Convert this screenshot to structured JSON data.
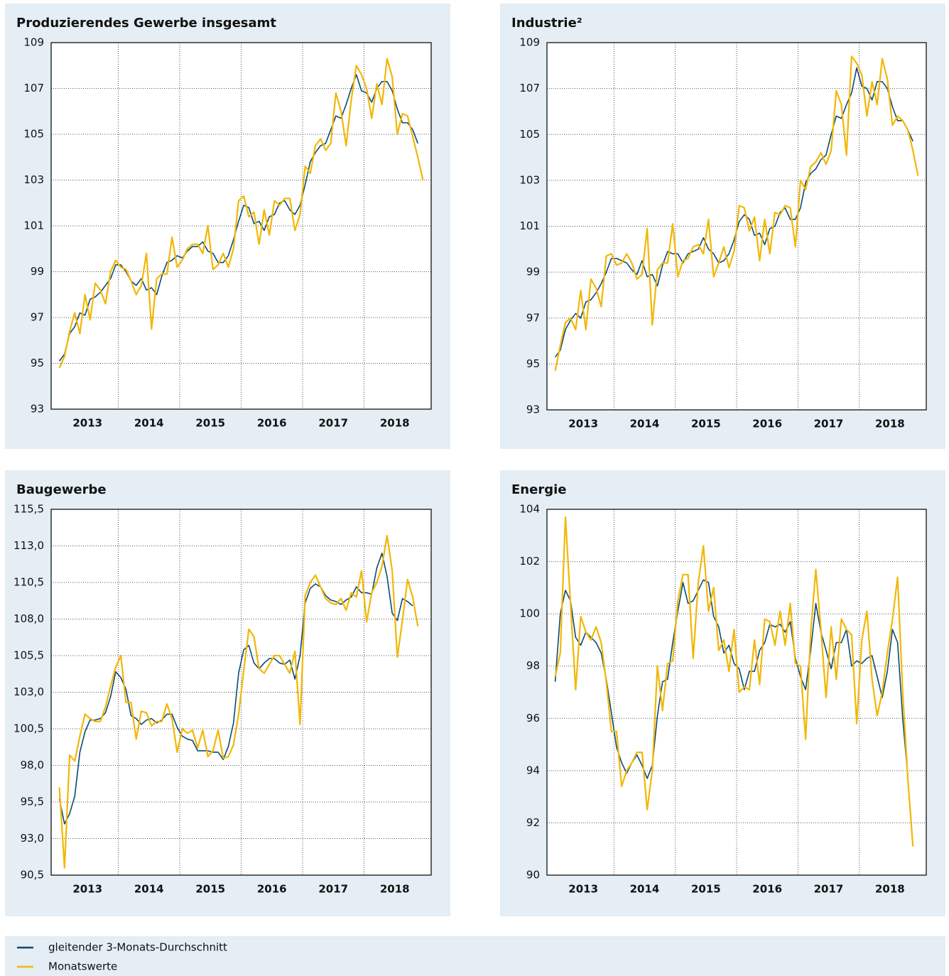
{
  "chart_data": [
    {
      "type": "line",
      "title": "Produzierendes Gewerbe insgesamt",
      "categories": [
        null,
        null,
        null,
        null,
        null,
        null,
        "2013",
        null,
        null,
        null,
        null,
        null,
        null,
        null,
        null,
        null,
        null,
        null,
        "2014",
        null,
        null,
        null,
        null,
        null,
        null,
        null,
        null,
        null,
        null,
        null,
        "2015",
        null,
        null,
        null,
        null,
        null,
        null,
        null,
        null,
        null,
        null,
        null,
        "2016",
        null,
        null,
        null,
        null,
        null,
        null,
        null,
        null,
        null,
        null,
        null,
        "2017",
        null,
        null,
        null,
        null,
        null,
        null,
        null,
        null,
        null,
        null,
        null,
        "2018",
        null,
        null,
        null,
        null,
        null
      ],
      "series": [
        {
          "name": "gleitender 3-Monats-Durchschnitt",
          "color": "#0b4a78",
          "values": [
            95.1,
            95.4,
            96.3,
            96.6,
            97.2,
            97.1,
            97.8,
            97.9,
            98.1,
            98.4,
            98.7,
            99.3,
            99.3,
            99.0,
            98.6,
            98.4,
            98.7,
            98.2,
            98.3,
            98.0,
            98.8,
            99.4,
            99.5,
            99.7,
            99.6,
            99.9,
            100.1,
            100.1,
            100.3,
            99.9,
            99.8,
            99.4,
            99.4,
            99.7,
            100.4,
            101.2,
            101.9,
            101.8,
            101.1,
            101.2,
            100.8,
            101.4,
            101.5,
            102.0,
            102.1,
            101.7,
            101.5,
            101.9,
            102.8,
            103.8,
            104.2,
            104.5,
            104.6,
            105.2,
            105.8,
            105.7,
            106.3,
            107.0,
            107.6,
            106.9,
            106.8,
            106.4,
            107.0,
            107.3,
            107.3,
            106.9,
            106.1,
            105.5,
            105.5,
            105.2,
            104.6,
            null
          ]
        },
        {
          "name": "Monatswerte",
          "color": "#f2b705",
          "values": [
            94.8,
            95.3,
            96.4,
            97.2,
            96.3,
            98.0,
            96.9,
            98.5,
            98.2,
            97.6,
            99.0,
            99.5,
            99.2,
            99.1,
            98.6,
            98.0,
            98.4,
            99.8,
            96.5,
            98.7,
            98.9,
            98.9,
            100.5,
            99.2,
            99.5,
            100.0,
            100.2,
            100.2,
            99.8,
            101.0,
            99.1,
            99.3,
            99.8,
            99.2,
            100.0,
            102.1,
            102.3,
            101.4,
            101.6,
            100.2,
            101.7,
            100.6,
            102.1,
            101.9,
            102.2,
            102.2,
            100.8,
            101.5,
            103.6,
            103.3,
            104.5,
            104.8,
            104.3,
            104.6,
            106.8,
            106.0,
            104.5,
            106.5,
            108.0,
            107.6,
            107.0,
            105.7,
            107.2,
            106.3,
            108.3,
            107.5,
            105.0,
            105.9,
            105.8,
            104.9,
            104.0,
            103.0
          ]
        }
      ],
      "ylim": [
        93,
        109
      ],
      "yticks": [
        93,
        95,
        97,
        99,
        101,
        103,
        105,
        107,
        109
      ],
      "grid": true
    },
    {
      "type": "line",
      "title": "Industrie²",
      "categories": [
        null,
        null,
        null,
        null,
        null,
        null,
        "2013",
        null,
        null,
        null,
        null,
        null,
        null,
        null,
        null,
        null,
        null,
        null,
        "2014",
        null,
        null,
        null,
        null,
        null,
        null,
        null,
        null,
        null,
        null,
        null,
        "2015",
        null,
        null,
        null,
        null,
        null,
        null,
        null,
        null,
        null,
        null,
        null,
        "2016",
        null,
        null,
        null,
        null,
        null,
        null,
        null,
        null,
        null,
        null,
        null,
        "2017",
        null,
        null,
        null,
        null,
        null,
        null,
        null,
        null,
        null,
        null,
        null,
        "2018",
        null,
        null,
        null,
        null,
        null
      ],
      "series": [
        {
          "color": "#0b4a78",
          "values": [
            95.3,
            95.6,
            96.5,
            96.9,
            97.2,
            97.0,
            97.7,
            97.8,
            98.1,
            98.5,
            99.0,
            99.6,
            99.6,
            99.5,
            99.4,
            99.1,
            98.9,
            99.5,
            98.8,
            98.9,
            98.4,
            99.3,
            99.9,
            99.8,
            99.8,
            99.4,
            99.8,
            99.9,
            100.0,
            100.5,
            100.0,
            99.8,
            99.4,
            99.5,
            99.8,
            100.4,
            101.2,
            101.5,
            101.3,
            100.6,
            100.7,
            100.2,
            100.9,
            101.0,
            101.6,
            101.8,
            101.3,
            101.3,
            101.8,
            102.9,
            103.3,
            103.5,
            103.9,
            104.1,
            105.0,
            105.8,
            105.7,
            106.3,
            106.8,
            107.9,
            107.1,
            107.0,
            106.5,
            107.3,
            107.3,
            107.0,
            106.2,
            105.6,
            105.6,
            105.2,
            104.7,
            null
          ]
        },
        {
          "color": "#f2b705",
          "values": [
            94.7,
            95.8,
            96.8,
            97.0,
            96.5,
            98.2,
            96.5,
            98.7,
            98.3,
            97.5,
            99.7,
            99.8,
            99.3,
            99.4,
            99.8,
            99.4,
            98.7,
            98.9,
            100.9,
            96.7,
            99.1,
            99.4,
            99.4,
            101.1,
            98.8,
            99.5,
            99.6,
            100.1,
            100.2,
            99.8,
            101.3,
            98.8,
            99.4,
            100.1,
            99.2,
            99.9,
            101.9,
            101.8,
            100.8,
            101.4,
            99.5,
            101.3,
            99.8,
            101.6,
            101.5,
            101.9,
            101.8,
            100.1,
            103.0,
            102.6,
            103.6,
            103.8,
            104.2,
            103.7,
            104.3,
            106.9,
            106.3,
            104.1,
            108.4,
            108.1,
            107.6,
            105.8,
            107.3,
            106.3,
            108.3,
            107.4,
            105.4,
            105.8,
            105.6,
            105.2,
            104.3,
            103.2
          ]
        }
      ],
      "ylim": [
        93,
        109
      ],
      "yticks": [
        93,
        95,
        97,
        99,
        101,
        103,
        105,
        107,
        109
      ],
      "grid": true
    },
    {
      "type": "line",
      "title": "Baugewerbe",
      "categories": [
        null,
        null,
        null,
        null,
        null,
        null,
        "2013",
        null,
        null,
        null,
        null,
        null,
        null,
        null,
        null,
        null,
        null,
        null,
        "2014",
        null,
        null,
        null,
        null,
        null,
        null,
        null,
        null,
        null,
        null,
        null,
        "2015",
        null,
        null,
        null,
        null,
        null,
        null,
        null,
        null,
        null,
        null,
        null,
        "2016",
        null,
        null,
        null,
        null,
        null,
        null,
        null,
        null,
        null,
        null,
        null,
        "2017",
        null,
        null,
        null,
        null,
        null,
        null,
        null,
        null,
        null,
        null,
        null,
        "2018",
        null,
        null,
        null,
        null,
        null
      ],
      "series": [
        {
          "color": "#0b4a78",
          "values": [
            95.7,
            94.0,
            94.7,
            95.9,
            98.9,
            100.3,
            101.1,
            101.1,
            101.2,
            101.6,
            102.7,
            104.4,
            104.0,
            103.2,
            101.4,
            101.2,
            100.8,
            101.1,
            101.2,
            100.9,
            101.1,
            101.5,
            101.5,
            100.6,
            100.0,
            99.8,
            99.7,
            99.0,
            99.0,
            99.0,
            98.9,
            98.9,
            98.4,
            99.3,
            100.9,
            104.3,
            105.9,
            106.2,
            105.0,
            104.6,
            105.0,
            105.3,
            105.3,
            105.0,
            104.9,
            105.2,
            103.9,
            105.5,
            109.1,
            110.1,
            110.4,
            110.2,
            109.6,
            109.3,
            109.2,
            109.0,
            109.3,
            109.5,
            110.2,
            109.8,
            109.8,
            109.7,
            111.5,
            112.5,
            110.9,
            108.4,
            107.9,
            109.4,
            109.2,
            108.9,
            null,
            null
          ]
        },
        {
          "color": "#f2b705",
          "values": [
            96.5,
            91.0,
            98.7,
            98.3,
            100.0,
            101.5,
            101.2,
            101.0,
            101.0,
            102.0,
            103.4,
            104.7,
            105.5,
            102.3,
            102.3,
            99.8,
            101.7,
            101.6,
            100.7,
            101.0,
            101.0,
            102.2,
            101.2,
            98.9,
            100.5,
            100.2,
            100.4,
            99.2,
            100.4,
            98.6,
            99.0,
            100.4,
            98.5,
            98.6,
            99.4,
            101.5,
            104.5,
            107.3,
            106.8,
            104.6,
            104.3,
            104.9,
            105.5,
            105.5,
            104.9,
            104.3,
            105.8,
            100.8,
            109.6,
            110.5,
            111.0,
            110.2,
            109.4,
            109.1,
            109.0,
            109.4,
            108.6,
            109.8,
            109.5,
            111.3,
            107.8,
            109.8,
            110.5,
            111.6,
            113.7,
            111.3,
            105.4,
            107.9,
            110.7,
            109.5,
            107.5,
            null
          ]
        }
      ],
      "ylim": [
        90.5,
        115.5
      ],
      "yticks": [
        {
          "value": 90.5,
          "label": "90,5"
        },
        {
          "value": 93,
          "label": "93,0"
        },
        {
          "value": 95.5,
          "label": "95,5"
        },
        {
          "value": 98,
          "label": "98,0"
        },
        {
          "value": 100.5,
          "label": "100,5"
        },
        {
          "value": 103,
          "label": "103,0"
        },
        {
          "value": 105.5,
          "label": "105,5"
        },
        {
          "value": 108,
          "label": "108,0"
        },
        {
          "value": 110.5,
          "label": "110,5"
        },
        {
          "value": 113,
          "label": "113,0"
        },
        {
          "value": 115.5,
          "label": "115,5"
        }
      ],
      "grid": true
    },
    {
      "type": "line",
      "title": "Energie",
      "categories": [
        null,
        null,
        null,
        null,
        null,
        null,
        "2013",
        null,
        null,
        null,
        null,
        null,
        null,
        null,
        null,
        null,
        null,
        null,
        "2014",
        null,
        null,
        null,
        null,
        null,
        null,
        null,
        null,
        null,
        null,
        null,
        "2015",
        null,
        null,
        null,
        null,
        null,
        null,
        null,
        null,
        null,
        null,
        null,
        "2016",
        null,
        null,
        null,
        null,
        null,
        null,
        null,
        null,
        null,
        null,
        null,
        "2017",
        null,
        null,
        null,
        null,
        null,
        null,
        null,
        null,
        null,
        null,
        null,
        "2018",
        null,
        null,
        null,
        null,
        null
      ],
      "series": [
        {
          "color": "#0b4a78",
          "values": [
            97.4,
            100.0,
            100.9,
            100.5,
            99.1,
            98.8,
            99.3,
            99.1,
            98.9,
            98.5,
            97.5,
            96.2,
            94.9,
            94.3,
            93.9,
            94.3,
            94.6,
            94.2,
            93.7,
            94.2,
            96.1,
            97.4,
            97.5,
            98.9,
            100.1,
            101.2,
            100.4,
            100.5,
            100.9,
            101.3,
            101.2,
            99.9,
            99.5,
            98.5,
            98.8,
            98.1,
            97.9,
            97.1,
            97.8,
            97.8,
            98.6,
            98.9,
            99.6,
            99.5,
            99.6,
            99.3,
            99.7,
            98.3,
            97.6,
            97.1,
            98.6,
            100.4,
            99.3,
            98.6,
            97.9,
            98.9,
            98.9,
            99.4,
            98.0,
            98.2,
            98.1,
            98.3,
            98.4,
            97.6,
            96.8,
            97.8,
            99.4,
            98.9,
            96.0,
            93.8,
            null,
            null
          ]
        },
        {
          "color": "#f2b705",
          "values": [
            97.6,
            98.5,
            103.7,
            100.4,
            97.1,
            99.9,
            99.3,
            99.0,
            99.5,
            98.9,
            97.4,
            95.5,
            95.5,
            93.4,
            94.0,
            94.3,
            94.7,
            94.7,
            92.5,
            94.0,
            98.0,
            96.3,
            98.1,
            98.2,
            100.5,
            101.5,
            101.5,
            98.3,
            101.2,
            102.6,
            100.1,
            101.0,
            98.6,
            99.0,
            97.8,
            99.4,
            97.0,
            97.2,
            97.1,
            99.0,
            97.3,
            99.8,
            99.7,
            98.8,
            100.1,
            98.8,
            100.4,
            98.1,
            98.0,
            95.2,
            99.3,
            101.7,
            99.4,
            96.8,
            99.5,
            97.5,
            99.8,
            99.4,
            99.2,
            95.8,
            99.0,
            100.1,
            97.5,
            96.1,
            97.0,
            98.5,
            99.8,
            101.4,
            97.0,
            93.7,
            91.1,
            null
          ]
        }
      ],
      "ylim": [
        90,
        104
      ],
      "yticks": [
        90,
        92,
        94,
        96,
        98,
        100,
        102,
        104
      ],
      "grid": true
    }
  ]
}
